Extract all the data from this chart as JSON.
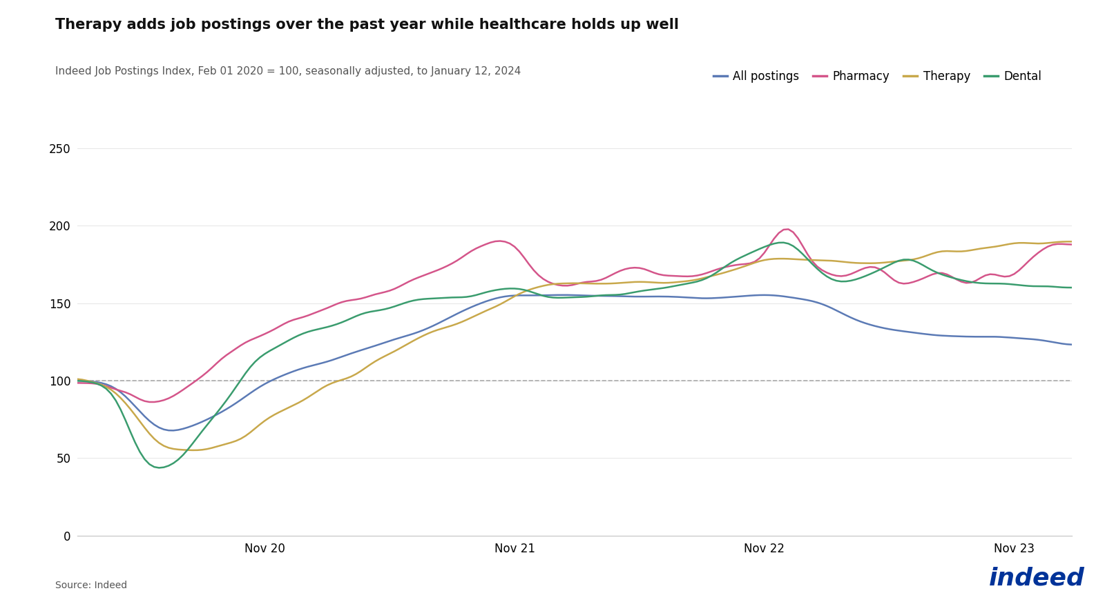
{
  "title": "Therapy adds job postings over the past year while healthcare holds up well",
  "subtitle": "Indeed Job Postings Index, Feb 01 2020 = 100, seasonally adjusted, to January 12, 2024",
  "source": "Source: Indeed",
  "ylim": [
    0,
    260
  ],
  "yticks": [
    0,
    50,
    100,
    150,
    200,
    250
  ],
  "x_tick_labels": [
    "Nov 20",
    "Nov 21",
    "Nov 22",
    "Nov 23"
  ],
  "series": {
    "All postings": {
      "color": "#5b7ab5",
      "linewidth": 1.8
    },
    "Pharmacy": {
      "color": "#d4558a",
      "linewidth": 1.8
    },
    "Therapy": {
      "color": "#c8a84b",
      "linewidth": 1.8
    },
    "Dental": {
      "color": "#3a9c6e",
      "linewidth": 1.8
    }
  },
  "baseline": 100,
  "background_color": "#ffffff",
  "title_fontsize": 15,
  "subtitle_fontsize": 11,
  "tick_fontsize": 12,
  "legend_fontsize": 12
}
